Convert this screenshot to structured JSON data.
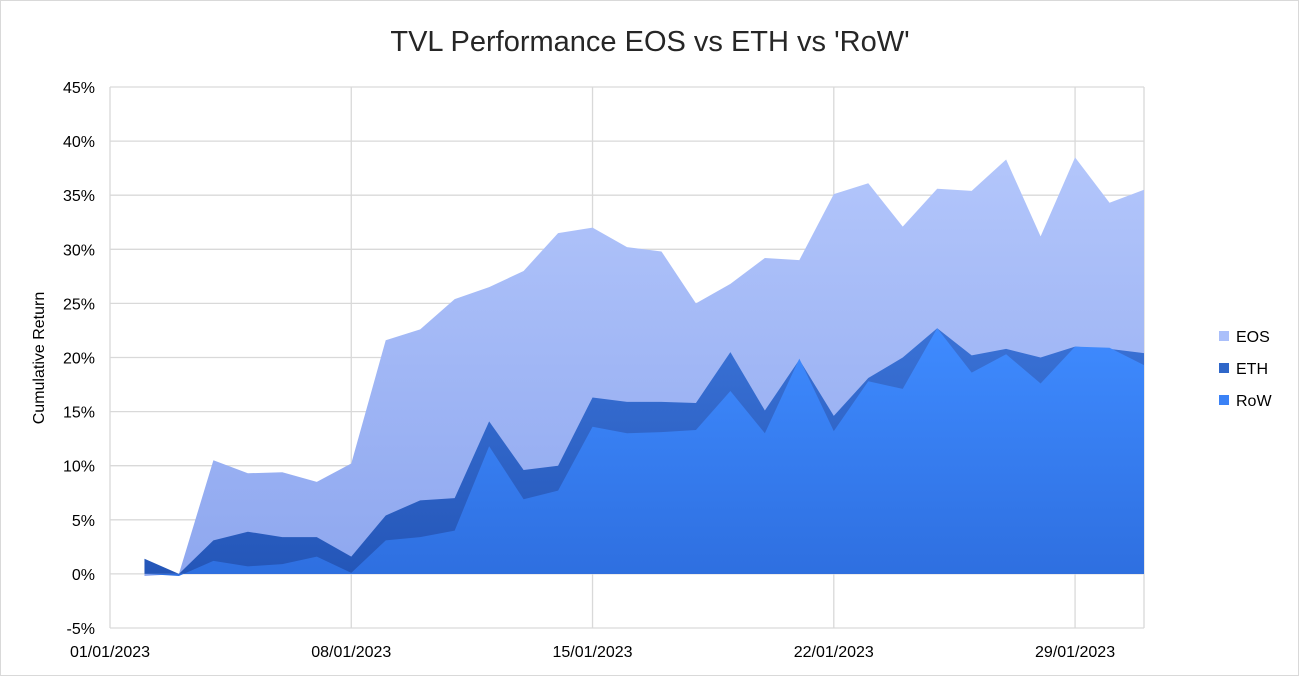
{
  "chart_data": {
    "type": "area",
    "title": "TVL Performance EOS vs ETH vs 'RoW'",
    "xlabel": "",
    "ylabel": "Cumulative Return",
    "x_start": "01/01/2023",
    "x_end": "31/01/2023",
    "xticks": [
      "01/01/2023",
      "08/01/2023",
      "15/01/2023",
      "22/01/2023",
      "29/01/2023"
    ],
    "yticks": [
      "-5%",
      "0%",
      "5%",
      "10%",
      "15%",
      "20%",
      "25%",
      "30%",
      "35%",
      "40%",
      "45%"
    ],
    "ylim": [
      -5,
      45
    ],
    "grid": true,
    "legend_position": "right",
    "x": [
      "02/01/2023",
      "03/01/2023",
      "04/01/2023",
      "05/01/2023",
      "06/01/2023",
      "07/01/2023",
      "08/01/2023",
      "09/01/2023",
      "10/01/2023",
      "11/01/2023",
      "12/01/2023",
      "13/01/2023",
      "14/01/2023",
      "15/01/2023",
      "16/01/2023",
      "17/01/2023",
      "18/01/2023",
      "19/01/2023",
      "20/01/2023",
      "21/01/2023",
      "22/01/2023",
      "23/01/2023",
      "24/01/2023",
      "25/01/2023",
      "26/01/2023",
      "27/01/2023",
      "28/01/2023",
      "29/01/2023",
      "30/01/2023",
      "31/01/2023"
    ],
    "series": [
      {
        "name": "EOS",
        "color": "#aabffa",
        "values": [
          -0.2,
          0.0,
          10.5,
          9.3,
          9.4,
          8.5,
          10.2,
          21.6,
          22.6,
          25.4,
          26.5,
          28.0,
          31.5,
          32.0,
          30.2,
          29.8,
          25.0,
          26.8,
          29.2,
          29.0,
          35.1,
          36.1,
          32.1,
          35.6,
          35.4,
          38.3,
          31.2,
          38.5,
          34.3,
          35.5
        ]
      },
      {
        "name": "ETH",
        "color": "#2f67c9",
        "values": [
          1.4,
          0.0,
          3.1,
          3.9,
          3.4,
          3.4,
          1.6,
          5.4,
          6.8,
          7.0,
          14.1,
          9.6,
          10.0,
          16.3,
          15.9,
          15.9,
          15.8,
          20.5,
          15.1,
          19.8,
          14.6,
          18.1,
          20.0,
          22.7,
          20.2,
          20.8,
          20.0,
          21.0,
          20.8,
          20.4
        ]
      },
      {
        "name": "RoW",
        "color": "#3b82f6",
        "values": [
          0.0,
          -0.2,
          1.2,
          0.7,
          0.9,
          1.6,
          0.1,
          3.1,
          3.4,
          4.0,
          11.8,
          6.9,
          7.7,
          13.6,
          13.0,
          13.1,
          13.3,
          16.9,
          13.0,
          19.9,
          13.2,
          17.8,
          17.1,
          22.7,
          18.6,
          20.3,
          17.6,
          21.0,
          20.9,
          19.3
        ]
      }
    ]
  }
}
